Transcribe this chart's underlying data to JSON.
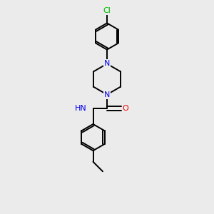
{
  "background_color": "#ebebeb",
  "bond_color": "#000000",
  "atom_colors": {
    "N": "#0000ee",
    "O": "#ee0000",
    "Cl": "#00bb00",
    "C": "#000000",
    "H": "#555555"
  },
  "figsize": [
    3.0,
    3.0
  ],
  "dpi": 100,
  "bond_lw": 1.4,
  "ring_r": 0.62,
  "xlim": [
    0,
    10
  ],
  "ylim": [
    0,
    10
  ]
}
